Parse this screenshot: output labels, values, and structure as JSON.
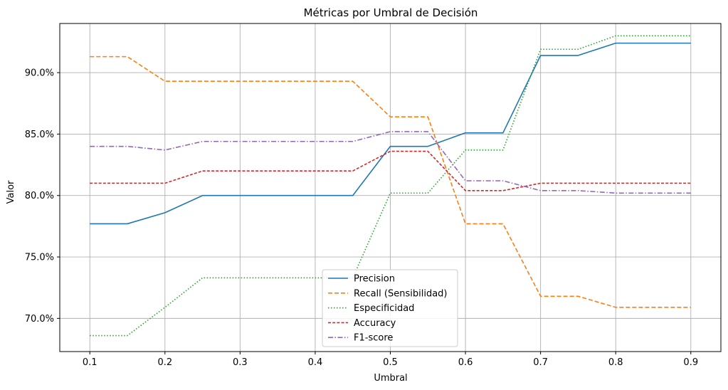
{
  "chart_data": {
    "type": "line",
    "title": "Métricas por Umbral de Decisión",
    "xlabel": "Umbral",
    "ylabel": "Valor",
    "x": [
      0.1,
      0.15,
      0.2,
      0.25,
      0.3,
      0.35,
      0.4,
      0.45,
      0.5,
      0.55,
      0.6,
      0.65,
      0.7,
      0.75,
      0.8,
      0.85,
      0.9
    ],
    "xlim": [
      0.06,
      0.94
    ],
    "ylim": [
      0.673,
      0.94
    ],
    "x_ticks": [
      "0.1",
      "0.2",
      "0.3",
      "0.4",
      "0.5",
      "0.6",
      "0.7",
      "0.8",
      "0.9"
    ],
    "y_ticks": [
      "70.0%",
      "75.0%",
      "80.0%",
      "85.0%",
      "90.0%"
    ],
    "grid": true,
    "legend_position": "bottom-center",
    "series": [
      {
        "name": "Precision",
        "color": "#1f77b4",
        "dash": "solid",
        "values": [
          0.777,
          0.777,
          0.786,
          0.8,
          0.8,
          0.8,
          0.8,
          0.8,
          0.84,
          0.84,
          0.851,
          0.851,
          0.914,
          0.914,
          0.924,
          0.924,
          0.924
        ]
      },
      {
        "name": "Recall (Sensibilidad)",
        "color": "#ff7f0e",
        "dash": "dashed",
        "values": [
          0.913,
          0.913,
          0.893,
          0.893,
          0.893,
          0.893,
          0.893,
          0.893,
          0.864,
          0.864,
          0.777,
          0.777,
          0.718,
          0.718,
          0.709,
          0.709,
          0.709
        ]
      },
      {
        "name": "Especificidad",
        "color": "#2ca02c",
        "dash": "dotted",
        "values": [
          0.686,
          0.686,
          0.709,
          0.733,
          0.733,
          0.733,
          0.733,
          0.733,
          0.802,
          0.802,
          0.837,
          0.837,
          0.919,
          0.919,
          0.93,
          0.93,
          0.93
        ]
      },
      {
        "name": "Accuracy",
        "color": "#d62728",
        "dash": "densely-dashed",
        "values": [
          0.81,
          0.81,
          0.81,
          0.82,
          0.82,
          0.82,
          0.82,
          0.82,
          0.836,
          0.836,
          0.804,
          0.804,
          0.81,
          0.81,
          0.81,
          0.81,
          0.81
        ]
      },
      {
        "name": "F1-score",
        "color": "#9467bd",
        "dash": "dashdot",
        "values": [
          0.84,
          0.84,
          0.837,
          0.844,
          0.844,
          0.844,
          0.844,
          0.844,
          0.852,
          0.852,
          0.812,
          0.812,
          0.804,
          0.804,
          0.802,
          0.802,
          0.802
        ]
      }
    ]
  }
}
